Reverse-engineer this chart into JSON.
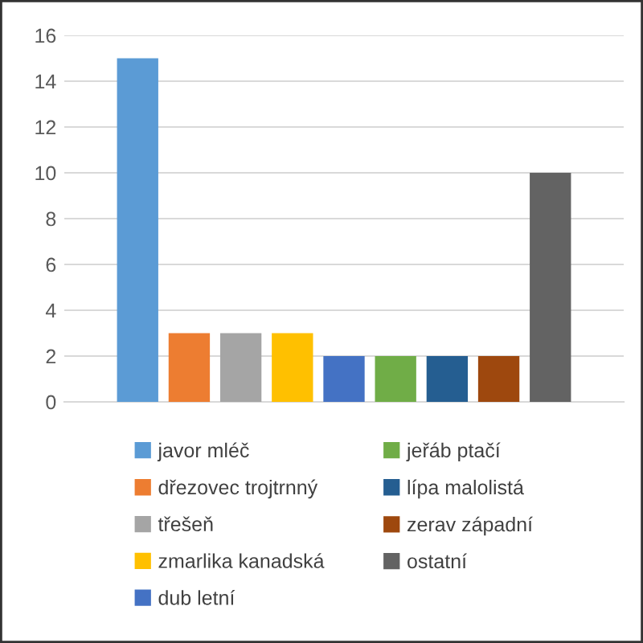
{
  "chart_data": {
    "type": "bar",
    "categories": [
      null
    ],
    "series": [
      {
        "name": "javor mléč",
        "color": "#5b9bd5",
        "values": [
          15
        ]
      },
      {
        "name": "dřezovec trojtrnný",
        "color": "#ed7d31",
        "values": [
          3
        ]
      },
      {
        "name": "třešeň",
        "color": "#a5a5a5",
        "values": [
          3
        ]
      },
      {
        "name": "zmarlika kanadská",
        "color": "#ffc000",
        "values": [
          3
        ]
      },
      {
        "name": "dub letní",
        "color": "#4472c4",
        "values": [
          2
        ]
      },
      {
        "name": "jeřáb ptačí",
        "color": "#70ad47",
        "values": [
          2
        ]
      },
      {
        "name": "lípa malolistá",
        "color": "#255e91",
        "values": [
          2
        ]
      },
      {
        "name": "zerav západní",
        "color": "#9e480e",
        "values": [
          2
        ]
      },
      {
        "name": "ostatní",
        "color": "#636363",
        "values": [
          10
        ]
      }
    ],
    "ylim": [
      0,
      16
    ],
    "yticks": [
      0,
      2,
      4,
      6,
      8,
      10,
      12,
      14,
      16
    ],
    "grid": "y",
    "legend": "bottom"
  }
}
